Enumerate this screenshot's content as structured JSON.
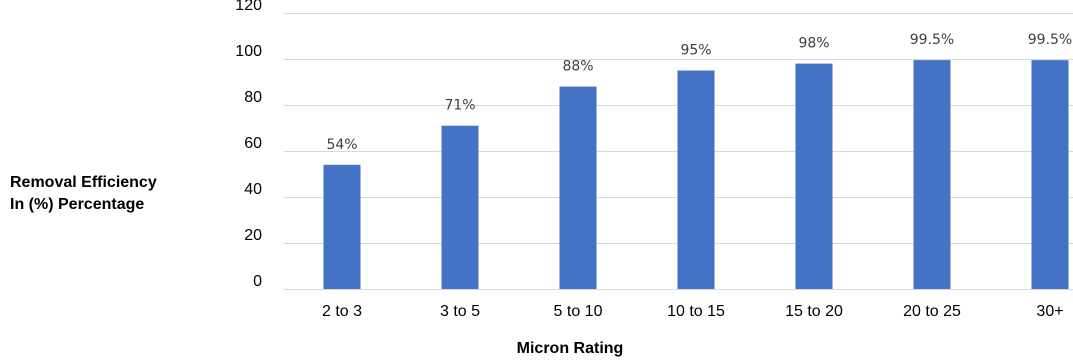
{
  "chart_data": {
    "type": "bar",
    "categories": [
      "2 to 3",
      "3 to 5",
      "5 to 10",
      "10 to 15",
      "15 to 20",
      "20 to 25",
      "30+"
    ],
    "values": [
      54,
      71,
      88,
      95,
      98,
      99.5,
      99.5
    ],
    "data_labels": [
      "54%",
      "71%",
      "88%",
      "95%",
      "98%",
      "99.5%",
      "99.5%"
    ],
    "y_ticks": [
      0,
      20,
      40,
      60,
      80,
      100,
      120
    ],
    "ylim": [
      0,
      120
    ],
    "xlabel": "Micron Rating",
    "ylabel_line1": "Removal Efficiency",
    "ylabel_line2": "In (%) Percentage",
    "grid": true,
    "bar_color": "#4472C4",
    "gridline_color": "#d9d9d9"
  }
}
